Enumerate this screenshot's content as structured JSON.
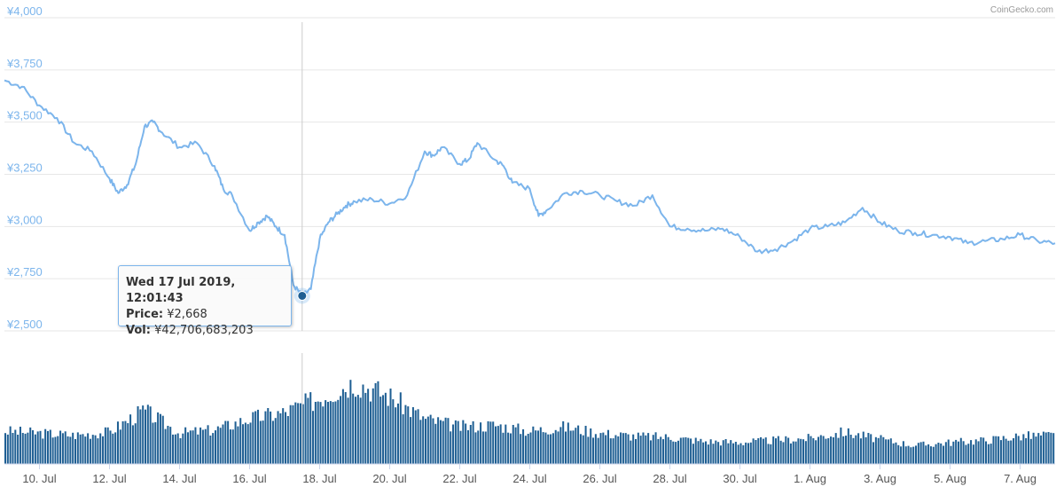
{
  "credit": "CoinGecko.com",
  "colors": {
    "price_line": "#7cb5ec",
    "volume_bar": "#1f5f93",
    "grid": "#e6e6e6",
    "y_label": "#7cb5ec",
    "x_label": "#555555",
    "hover_marker": "#1f5f93",
    "crosshair": "#cccccc"
  },
  "tooltip": {
    "title": "Wed 17 Jul 2019, 12:01:43",
    "price_label": "Price:",
    "price_value": "¥2,668",
    "vol_label": "Vol:",
    "vol_value": "¥42,706,683,203"
  },
  "chart_data": {
    "type": "line",
    "title": "",
    "xlabel": "",
    "ylabel": "",
    "grid": true,
    "y_tick_labels": [
      "¥4,000",
      "¥3,750",
      "¥3,500",
      "¥3,250",
      "¥3,000",
      "¥2,750",
      "¥2,500"
    ],
    "y_ticks": [
      4000,
      3750,
      3500,
      3250,
      3000,
      2750,
      2500
    ],
    "ylim": [
      2500,
      4000
    ],
    "x_tick_labels": [
      "10. Jul",
      "12. Jul",
      "14. Jul",
      "16. Jul",
      "18. Jul",
      "20. Jul",
      "22. Jul",
      "24. Jul",
      "26. Jul",
      "28. Jul",
      "30. Jul",
      "1. Aug",
      "3. Aug",
      "5. Aug",
      "7. Aug"
    ],
    "x_ticks": [
      "2019-07-10",
      "2019-07-12",
      "2019-07-14",
      "2019-07-16",
      "2019-07-18",
      "2019-07-20",
      "2019-07-22",
      "2019-07-24",
      "2019-07-26",
      "2019-07-28",
      "2019-07-30",
      "2019-08-01",
      "2019-08-03",
      "2019-08-05",
      "2019-08-07"
    ],
    "x_range": [
      "2019-07-09",
      "2019-08-08"
    ],
    "hover": {
      "x": "2019-07-17 12:01:43",
      "price": 2668,
      "volume": 42706683203
    },
    "series": [
      {
        "name": "Price",
        "type": "line",
        "x": [
          "2019-07-09 00:00",
          "2019-07-09 12:00",
          "2019-07-10 00:00",
          "2019-07-10 12:00",
          "2019-07-11 00:00",
          "2019-07-11 12:00",
          "2019-07-12 00:00",
          "2019-07-12 06:00",
          "2019-07-12 12:00",
          "2019-07-12 18:00",
          "2019-07-13 00:00",
          "2019-07-13 06:00",
          "2019-07-13 12:00",
          "2019-07-14 00:00",
          "2019-07-14 12:00",
          "2019-07-15 00:00",
          "2019-07-15 06:00",
          "2019-07-15 12:00",
          "2019-07-16 00:00",
          "2019-07-16 06:00",
          "2019-07-16 12:00",
          "2019-07-16 18:00",
          "2019-07-17 00:00",
          "2019-07-17 06:00",
          "2019-07-17 12:00",
          "2019-07-17 18:00",
          "2019-07-18 00:00",
          "2019-07-18 06:00",
          "2019-07-18 12:00",
          "2019-07-18 18:00",
          "2019-07-19 00:00",
          "2019-07-19 12:00",
          "2019-07-20 00:00",
          "2019-07-20 12:00",
          "2019-07-21 00:00",
          "2019-07-21 06:00",
          "2019-07-21 12:00",
          "2019-07-22 00:00",
          "2019-07-22 06:00",
          "2019-07-22 12:00",
          "2019-07-23 00:00",
          "2019-07-23 06:00",
          "2019-07-23 12:00",
          "2019-07-24 00:00",
          "2019-07-24 06:00",
          "2019-07-24 12:00",
          "2019-07-25 00:00",
          "2019-07-25 12:00",
          "2019-07-26 00:00",
          "2019-07-26 12:00",
          "2019-07-27 00:00",
          "2019-07-27 12:00",
          "2019-07-28 00:00",
          "2019-07-28 12:00",
          "2019-07-29 00:00",
          "2019-07-29 12:00",
          "2019-07-30 00:00",
          "2019-07-30 12:00",
          "2019-07-31 00:00",
          "2019-07-31 12:00",
          "2019-08-01 00:00",
          "2019-08-01 12:00",
          "2019-08-02 00:00",
          "2019-08-02 12:00",
          "2019-08-03 00:00",
          "2019-08-03 12:00",
          "2019-08-04 00:00",
          "2019-08-04 12:00",
          "2019-08-05 00:00",
          "2019-08-05 12:00",
          "2019-08-06 00:00",
          "2019-08-06 12:00",
          "2019-08-07 00:00",
          "2019-08-07 12:00",
          "2019-08-08 00:00"
        ],
        "values": [
          3700,
          3670,
          3580,
          3520,
          3400,
          3360,
          3230,
          3160,
          3200,
          3300,
          3480,
          3500,
          3450,
          3380,
          3400,
          3290,
          3180,
          3150,
          2980,
          3020,
          3050,
          3000,
          2960,
          2720,
          2668,
          2700,
          2940,
          3020,
          3060,
          3100,
          3120,
          3130,
          3110,
          3150,
          3360,
          3340,
          3380,
          3300,
          3320,
          3400,
          3320,
          3290,
          3210,
          3180,
          3050,
          3080,
          3160,
          3170,
          3150,
          3120,
          3100,
          3150,
          3000,
          2990,
          2980,
          2990,
          2950,
          2880,
          2890,
          2930,
          2990,
          3000,
          3020,
          3090,
          3020,
          2980,
          2970,
          2960,
          2950,
          2920,
          2930,
          2940,
          2960,
          2930,
          2920
        ]
      },
      {
        "name": "Vol",
        "type": "column",
        "x": [
          "2019-07-09",
          "2019-07-10",
          "2019-07-11",
          "2019-07-12",
          "2019-07-13",
          "2019-07-14",
          "2019-07-15",
          "2019-07-16",
          "2019-07-17",
          "2019-07-18",
          "2019-07-19",
          "2019-07-20",
          "2019-07-21",
          "2019-07-22",
          "2019-07-23",
          "2019-07-24",
          "2019-07-25",
          "2019-07-26",
          "2019-07-27",
          "2019-07-28",
          "2019-07-29",
          "2019-07-30",
          "2019-07-31",
          "2019-08-01",
          "2019-08-02",
          "2019-08-03",
          "2019-08-04",
          "2019-08-05",
          "2019-08-06",
          "2019-08-07",
          "2019-08-08"
        ],
        "values": [
          32,
          30,
          28,
          31,
          52,
          30,
          33,
          44,
          50,
          64,
          80,
          66,
          44,
          36,
          38,
          32,
          36,
          30,
          27,
          26,
          22,
          21,
          23,
          25,
          31,
          24,
          18,
          21,
          23,
          27,
          28
        ]
      }
    ]
  }
}
